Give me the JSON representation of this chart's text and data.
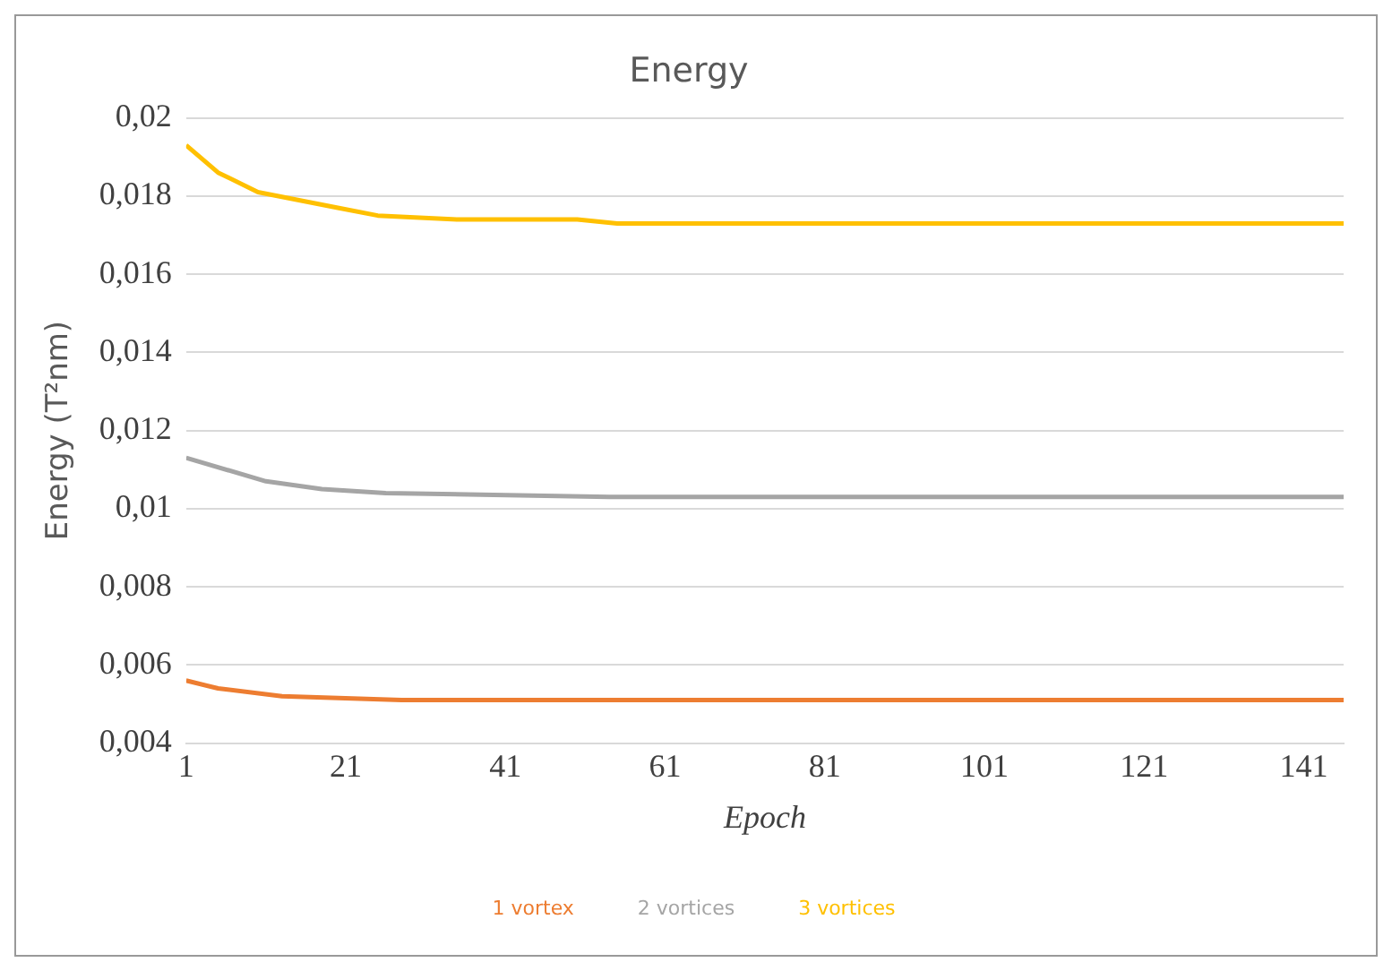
{
  "chart_data": {
    "type": "line",
    "title": "Energy",
    "xlabel": "Epoch",
    "ylabel": "Energy (T²nm)",
    "xlim": [
      1,
      146
    ],
    "xticks": [
      1,
      21,
      41,
      61,
      81,
      101,
      121,
      141
    ],
    "ylim": [
      0.004,
      0.02
    ],
    "yticks": [
      {
        "value": 0.004,
        "label": "0,004"
      },
      {
        "value": 0.006,
        "label": "0,006"
      },
      {
        "value": 0.008,
        "label": "0,008"
      },
      {
        "value": 0.01,
        "label": "0,01"
      },
      {
        "value": 0.012,
        "label": "0,012"
      },
      {
        "value": 0.014,
        "label": "0,014"
      },
      {
        "value": 0.016,
        "label": "0,016"
      },
      {
        "value": 0.018,
        "label": "0,018"
      },
      {
        "value": 0.02,
        "label": "0,02"
      }
    ],
    "grid": "y",
    "legend": "bottom",
    "marker": "none",
    "line_style": "solid",
    "series": [
      {
        "name": "1 vortex",
        "color": "#ed7d31",
        "x": [
          1,
          5,
          13,
          28,
          60,
          100,
          146
        ],
        "values": [
          0.0056,
          0.0054,
          0.0052,
          0.0051,
          0.0051,
          0.0051,
          0.0051
        ]
      },
      {
        "name": "2 vortices",
        "color": "#a5a5a5",
        "x": [
          1,
          11,
          18,
          26,
          54,
          100,
          146
        ],
        "values": [
          0.0113,
          0.0107,
          0.0105,
          0.0104,
          0.0103,
          0.0103,
          0.0103
        ]
      },
      {
        "name": "3 vortices",
        "color": "#ffc000",
        "x": [
          1,
          5,
          10,
          15,
          20,
          25,
          35,
          50,
          55,
          100,
          146
        ],
        "values": [
          0.0193,
          0.0186,
          0.0181,
          0.0179,
          0.0177,
          0.0175,
          0.0174,
          0.0174,
          0.0173,
          0.0173,
          0.0173
        ]
      }
    ]
  }
}
